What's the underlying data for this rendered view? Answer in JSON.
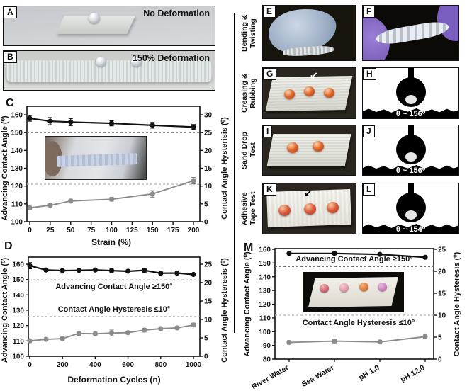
{
  "panels": {
    "a": {
      "letter": "A",
      "caption": "No Deformation"
    },
    "b": {
      "letter": "B",
      "caption": "150% Deformation"
    },
    "c": {
      "letter": "C"
    },
    "d": {
      "letter": "D"
    },
    "e": {
      "letter": "E"
    },
    "f": {
      "letter": "F"
    },
    "g": {
      "letter": "G"
    },
    "h": {
      "letter": "H",
      "theta": "θ ~ 156⁰"
    },
    "i": {
      "letter": "I"
    },
    "j": {
      "letter": "J",
      "theta": "θ ~ 156⁰"
    },
    "k": {
      "letter": "K"
    },
    "l": {
      "letter": "L",
      "theta": "θ ~ 154⁰"
    },
    "m": {
      "letter": "M"
    }
  },
  "row_labels": [
    "Bending & Twisting",
    "Creasing & Rubbing",
    "Sand Drop Test",
    "Adhesive Tape Test"
  ],
  "icons": {
    "crease_arrow": "↙",
    "tape_arrow": "↙"
  },
  "colors": {
    "advancing_series": "#111111",
    "hysteresis_series": "#8b8b8b"
  },
  "chart_data": [
    {
      "panel": "C",
      "type": "line",
      "xlabel": "Strain (%)",
      "x_ticks": [
        0,
        25,
        50,
        75,
        100,
        125,
        150,
        175,
        200
      ],
      "x": [
        0,
        25,
        50,
        100,
        150,
        200
      ],
      "left_axis": {
        "label": "Advancing Contact Angle (⁰)",
        "min": 100,
        "max": 160,
        "ticks": [
          100,
          110,
          120,
          130,
          140,
          150,
          160
        ]
      },
      "right_axis": {
        "label": "Contact Angle Hysterisis (⁰)",
        "min": 0,
        "max": 30,
        "ticks": [
          0,
          5,
          10,
          15,
          20,
          25,
          30
        ]
      },
      "series": [
        {
          "name": "Advancing Contact Angle",
          "axis": "left",
          "color": "#111111",
          "values": [
            158,
            156.4,
            155.9,
            155.2,
            154.1,
            153.1
          ],
          "err": [
            1.6,
            2.0,
            2.0,
            1.4,
            1.6,
            1.4
          ]
        },
        {
          "name": "Contact Angle Hysteresis",
          "axis": "right",
          "color": "#8b8b8b",
          "values": [
            3.9,
            4.6,
            5.8,
            6.3,
            7.8,
            11.5
          ],
          "err": [
            0.4,
            0.4,
            0.5,
            0.5,
            0.9,
            0.9
          ]
        }
      ],
      "dashed_lines": [
        {
          "axis": "left",
          "value": 150,
          "color": "#666666"
        },
        {
          "axis": "right",
          "value": 10.5,
          "color": "#b5b5b5"
        }
      ],
      "annotations": []
    },
    {
      "panel": "D",
      "type": "line",
      "xlabel": "Deformation Cycles (n)",
      "x_ticks": [
        0,
        200,
        400,
        600,
        800,
        1000
      ],
      "x": [
        0,
        100,
        200,
        300,
        400,
        500,
        600,
        700,
        800,
        900,
        1000
      ],
      "left_axis": {
        "label": "Advancing Contact Angle (⁰)",
        "min": 100,
        "max": 160,
        "ticks": [
          100,
          110,
          120,
          130,
          140,
          150,
          160
        ]
      },
      "right_axis": {
        "label": "Contact Angle Hysteresis (⁰)",
        "min": 0,
        "max": 25,
        "ticks": [
          0,
          5,
          10,
          15,
          20,
          25
        ]
      },
      "series": [
        {
          "name": "Advancing Contact Angle",
          "axis": "left",
          "color": "#111111",
          "values": [
            159,
            156.2,
            155.8,
            156,
            156.2,
            155.8,
            155.4,
            156,
            154.1,
            154.2,
            153.3
          ],
          "err": [
            2,
            1,
            1.6,
            0.8,
            0.8,
            1,
            0.8,
            1.2,
            0.8,
            0.8,
            0.8
          ]
        },
        {
          "name": "Contact Angle Hysteresis",
          "axis": "right",
          "color": "#8b8b8b",
          "values": [
            4.2,
            4.6,
            4.8,
            6.2,
            6.1,
            6.3,
            6.4,
            7.1,
            7.5,
            7.7,
            8.5
          ],
          "err": [
            0.4,
            0.4,
            0.4,
            0.5,
            0.4,
            0.8,
            0.4,
            0.5,
            0.4,
            0.4,
            0.5
          ]
        }
      ],
      "dashed_lines": [
        {
          "axis": "left",
          "value": 149.7,
          "color": "#666666"
        },
        {
          "axis": "right",
          "value": 10.8,
          "color": "#b5b5b5"
        }
      ],
      "annotations": [
        {
          "text": "Advancing Contact Angle ≥150°",
          "color": "#111111"
        },
        {
          "text": "Contact Angle Hysteresis ≤10°",
          "color": "#8b8b8b"
        }
      ]
    },
    {
      "panel": "M",
      "type": "line",
      "xlabel": "",
      "categories": [
        "River Water",
        "Sea Water",
        "pH 1.0",
        "pH 12.0"
      ],
      "left_axis": {
        "label": "Advancing Contact Angle (⁰)",
        "min": 80,
        "max": 160,
        "ticks": [
          80,
          90,
          100,
          110,
          120,
          130,
          140,
          150,
          160
        ]
      },
      "right_axis": {
        "label": "Contact Angle Hysteresis (⁰)",
        "min": 0,
        "max": 25,
        "ticks": [
          0,
          5,
          10,
          15,
          20,
          25
        ]
      },
      "series": [
        {
          "name": "Advancing Contact Angle",
          "axis": "left",
          "color": "#111111",
          "values": [
            157,
            157,
            156.3,
            154.2
          ],
          "err": [
            0.8,
            0.8,
            0.8,
            0.8
          ]
        },
        {
          "name": "Contact Angle Hysteresis",
          "axis": "right",
          "color": "#8b8b8b",
          "values": [
            3.8,
            4.1,
            3.9,
            5.1
          ],
          "err": [
            0.4,
            0.4,
            0.4,
            0.4
          ]
        }
      ],
      "dashed_lines": [
        {
          "axis": "left",
          "value": 147.5,
          "color": "#666666"
        },
        {
          "axis": "right",
          "value": 10,
          "color": "#b5b5b5"
        }
      ],
      "annotations": [
        {
          "text": "Advancing Contact Angle ≥150°",
          "color": "#111111"
        },
        {
          "text": "Contact Angle Hysteresis ≤10°",
          "color": "#8b8b8b"
        }
      ]
    }
  ]
}
